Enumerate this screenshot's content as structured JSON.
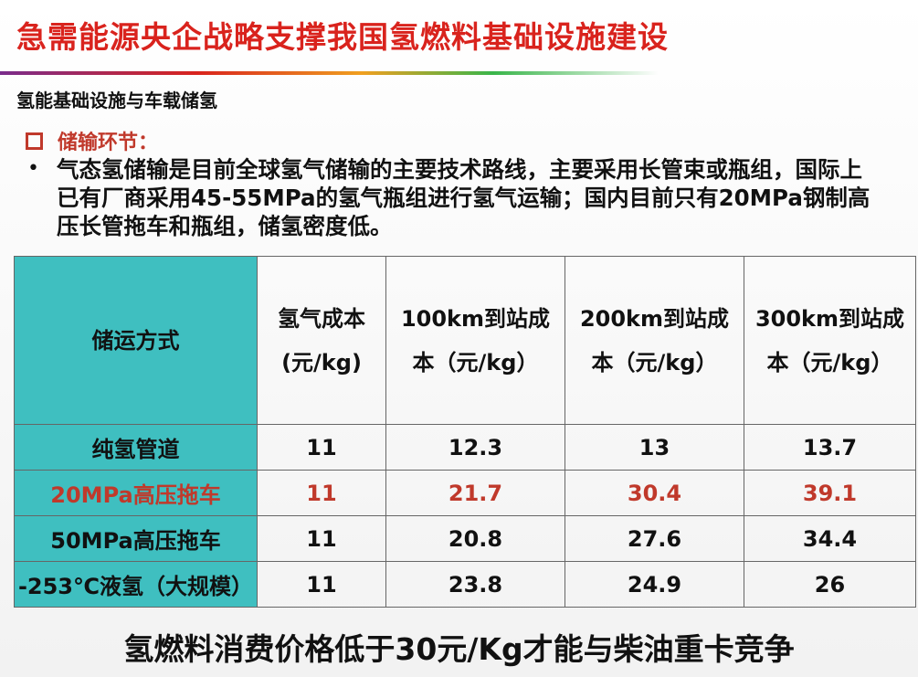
{
  "header": {
    "title": "急需能源央企战略支撑我国氢燃料基础设施建设",
    "subtitle": "氢能基础设施与车载储氢"
  },
  "section": {
    "heading": "储输环节：",
    "bullet": "气态氢储输是目前全球氢气储输的主要技术路线，主要采用长管束或瓶组，国际上已有厂商采用45-55MPa的氢气瓶组进行氢气运输；国内目前只有20MPa钢制高压长管拖车和瓶组，储氢密度低。"
  },
  "table": {
    "header": [
      [
        "储运方式"
      ],
      [
        "氢气成本",
        "(元/kg)"
      ],
      [
        "100km到站成",
        "本（元/kg）"
      ],
      [
        "200km到站成",
        "本（元/kg）"
      ],
      [
        "300km到站成",
        "本（元/kg）"
      ]
    ],
    "rows": [
      {
        "cells": [
          "纯氢管道",
          11,
          12.3,
          13,
          13.7
        ]
      },
      {
        "cells": [
          "20MPa高压拖车",
          11,
          21.7,
          30.4,
          39.1
        ],
        "color": "#c0392b"
      },
      {
        "cells": [
          "50MPa高压拖车",
          11,
          20.8,
          27.6,
          34.4
        ]
      },
      {
        "cells": [
          "-253℃液氢（大规模）",
          11,
          23.8,
          24.9,
          26
        ]
      }
    ]
  },
  "footer": "氢燃料消费价格低于30元/Kg才能与柴油重卡竞争"
}
